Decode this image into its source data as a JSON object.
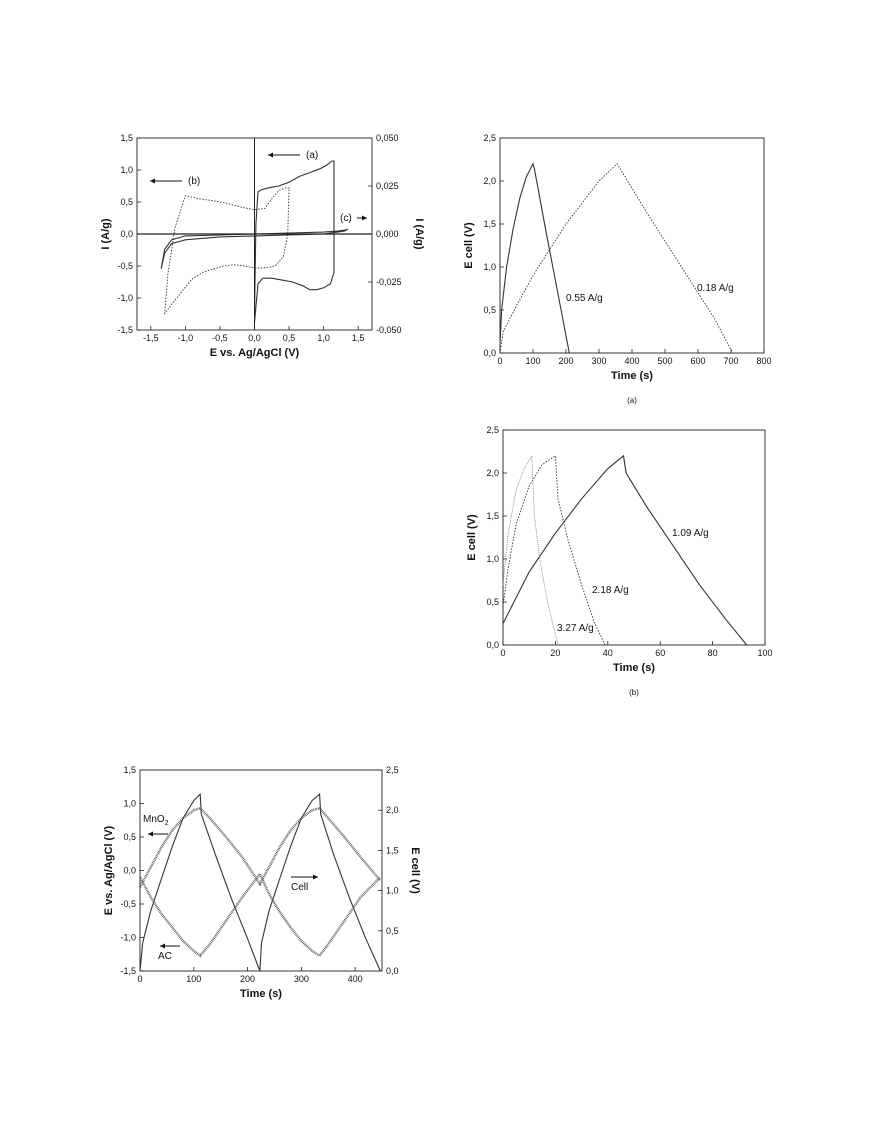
{
  "chart_data": [
    {
      "id": "cv",
      "type": "line",
      "xlabel": "E vs. Ag/AgCl (V)",
      "ylabel": "I (A/g)",
      "ylabel_right": "I (A/g)",
      "xlim": [
        -1.7,
        1.7
      ],
      "ylim": [
        -1.5,
        1.5
      ],
      "ylim_right": [
        -0.05,
        0.05
      ],
      "xticks": [
        -1.5,
        -1.0,
        -0.5,
        0.0,
        0.5,
        1.0,
        1.5
      ],
      "xtick_labels": [
        "-1,5",
        "-1,0",
        "-0,5",
        "0,0",
        "0,5",
        "1,0",
        "1,5"
      ],
      "yticks": [
        -1.5,
        -1.0,
        -0.5,
        0.0,
        0.5,
        1.0,
        1.5
      ],
      "ytick_labels": [
        "-1,5",
        "-1,0",
        "-0,5",
        "0,0",
        "0,5",
        "1,0",
        "1,5"
      ],
      "yticks_right": [
        -0.05,
        -0.025,
        0.0,
        0.025,
        0.05
      ],
      "ytick_labels_right": [
        "-0,050",
        "-0,025",
        "0,000",
        "0,025",
        "0,050"
      ],
      "annotations": [
        {
          "text": "(a)",
          "arrow": "left"
        },
        {
          "text": "(b)",
          "arrow": "left"
        },
        {
          "text": "(c)",
          "arrow": "right"
        }
      ],
      "series": [
        {
          "axis": "right",
          "style": "solid",
          "x": [
            0.0,
            0.02,
            0.05,
            0.1,
            0.2,
            0.35,
            0.5,
            0.65,
            0.8,
            0.95,
            1.05,
            1.12,
            1.15,
            1.15,
            1.1,
            1.0,
            0.9,
            0.8,
            0.7,
            0.55,
            0.4,
            0.25,
            0.12,
            0.05,
            0.0
          ],
          "y": [
            -0.042,
            0.005,
            0.022,
            0.023,
            0.024,
            0.025,
            0.027,
            0.03,
            0.032,
            0.034,
            0.036,
            0.038,
            0.038,
            -0.02,
            -0.026,
            -0.028,
            -0.029,
            -0.029,
            -0.027,
            -0.025,
            -0.024,
            -0.023,
            -0.023,
            -0.026,
            -0.046
          ]
        },
        {
          "axis": "left",
          "style": "dotted",
          "x": [
            -1.3,
            -1.25,
            -1.15,
            -1.0,
            -0.8,
            -0.6,
            -0.4,
            -0.2,
            0.0,
            0.15,
            0.25,
            0.35,
            0.45,
            0.5,
            0.48,
            0.42,
            0.3,
            0.15,
            0.0,
            -0.15,
            -0.3,
            -0.45,
            -0.6,
            -0.75,
            -0.9,
            -1.05,
            -1.2,
            -1.3
          ],
          "y": [
            -1.25,
            -0.6,
            0.1,
            0.6,
            0.55,
            0.52,
            0.48,
            0.42,
            0.38,
            0.4,
            0.55,
            0.68,
            0.72,
            0.72,
            0.0,
            -0.35,
            -0.5,
            -0.53,
            -0.53,
            -0.5,
            -0.48,
            -0.5,
            -0.55,
            -0.6,
            -0.7,
            -0.9,
            -1.1,
            -1.25
          ]
        },
        {
          "axis": "right",
          "style": "solid",
          "x": [
            -1.35,
            -1.3,
            -1.2,
            -1.0,
            -0.5,
            0.0,
            0.5,
            1.0,
            1.2,
            1.3,
            1.35,
            1.3,
            1.2,
            1.0,
            0.5,
            0.0,
            -0.5,
            -1.0,
            -1.2,
            -1.3,
            -1.35
          ],
          "y": [
            -0.018,
            -0.008,
            -0.003,
            -0.001,
            -0.0005,
            0.0,
            0.0005,
            0.001,
            0.0015,
            0.002,
            0.0025,
            0.0015,
            0.001,
            0.0,
            -0.0005,
            -0.001,
            -0.0015,
            -0.003,
            -0.005,
            -0.01,
            -0.018
          ]
        }
      ]
    },
    {
      "id": "gcd-a",
      "type": "line",
      "xlabel": "Time (s)",
      "ylabel": "E cell (V)",
      "caption": "(a)",
      "xlim": [
        0,
        800
      ],
      "ylim": [
        0,
        2.5
      ],
      "xticks": [
        0,
        100,
        200,
        300,
        400,
        500,
        600,
        700,
        800
      ],
      "xtick_labels": [
        "0",
        "100",
        "200",
        "300",
        "400",
        "500",
        "600",
        "700",
        "800"
      ],
      "yticks": [
        0,
        0.5,
        1.0,
        1.5,
        2.0,
        2.5
      ],
      "ytick_labels": [
        "0,0",
        "0,5",
        "1,0",
        "1,5",
        "2,0",
        "2,5"
      ],
      "series": [
        {
          "label": "0.55 A/g",
          "style": "solid",
          "x": [
            0,
            5,
            20,
            40,
            60,
            80,
            100,
            104,
            140,
            175,
            210
          ],
          "y": [
            0.1,
            0.5,
            1.0,
            1.45,
            1.8,
            2.05,
            2.2,
            2.15,
            1.4,
            0.7,
            0.0
          ]
        },
        {
          "label": "0.18 A/g",
          "style": "dotted",
          "x": [
            0,
            10,
            50,
            100,
            150,
            200,
            250,
            300,
            355,
            360,
            450,
            550,
            650,
            705
          ],
          "y": [
            0.0,
            0.25,
            0.55,
            0.9,
            1.2,
            1.5,
            1.75,
            2.0,
            2.2,
            2.17,
            1.6,
            1.0,
            0.4,
            0.0
          ]
        }
      ]
    },
    {
      "id": "gcd-b",
      "type": "line",
      "xlabel": "Time (s)",
      "ylabel": "E cell (V)",
      "caption": "(b)",
      "xlim": [
        0,
        100
      ],
      "ylim": [
        0,
        2.5
      ],
      "xticks": [
        0,
        20,
        40,
        60,
        80,
        100
      ],
      "xtick_labels": [
        "0",
        "20",
        "40",
        "60",
        "80",
        "100"
      ],
      "yticks": [
        0,
        0.5,
        1.0,
        1.5,
        2.0,
        2.5
      ],
      "ytick_labels": [
        "0,0",
        "0,5",
        "1,0",
        "1,5",
        "2,0",
        "2,5"
      ],
      "series": [
        {
          "label": "1.09 A/g",
          "style": "solid",
          "x": [
            0,
            5,
            10,
            20,
            30,
            40,
            46,
            47,
            55,
            65,
            75,
            85,
            93
          ],
          "y": [
            0.25,
            0.55,
            0.85,
            1.3,
            1.7,
            2.05,
            2.2,
            2.0,
            1.6,
            1.15,
            0.7,
            0.3,
            0.0
          ]
        },
        {
          "label": "2.18 A/g",
          "style": "dotted",
          "x": [
            0,
            2,
            5,
            10,
            15,
            20,
            21,
            25,
            30,
            35,
            39
          ],
          "y": [
            0.45,
            0.9,
            1.4,
            1.85,
            2.1,
            2.2,
            1.7,
            1.2,
            0.7,
            0.25,
            0.0
          ]
        },
        {
          "label": "3.27 A/g",
          "style": "light",
          "x": [
            0,
            2,
            5,
            8,
            11,
            12,
            14,
            17,
            21
          ],
          "y": [
            0.7,
            1.3,
            1.8,
            2.05,
            2.2,
            1.5,
            1.0,
            0.5,
            0.0
          ]
        }
      ]
    },
    {
      "id": "electrodes",
      "type": "line",
      "xlabel": "Time (s)",
      "ylabel": "E vs. Ag/AgCl (V)",
      "ylabel_right": "E cell (V)",
      "xlim": [
        0,
        450
      ],
      "ylim": [
        -1.5,
        1.5
      ],
      "ylim_right": [
        0,
        2.5
      ],
      "xticks": [
        0,
        100,
        200,
        300,
        400
      ],
      "xtick_labels": [
        "0",
        "100",
        "200",
        "300",
        "400"
      ],
      "yticks": [
        -1.5,
        -1.0,
        -0.5,
        0.0,
        0.5,
        1.0,
        1.5
      ],
      "ytick_labels": [
        "-1,5",
        "-1,0",
        "-0,5",
        "0,0",
        "0,5",
        "1,0",
        "1,5"
      ],
      "yticks_right": [
        0,
        0.5,
        1.0,
        1.5,
        2.0,
        2.5
      ],
      "ytick_labels_right": [
        "0,0",
        "0,5",
        "1,0",
        "1,5",
        "2,0",
        "2,5"
      ],
      "annotations": [
        {
          "text": "MnO",
          "sub": "2",
          "arrow": "left"
        },
        {
          "text": "Cell",
          "arrow": "right"
        },
        {
          "text": "AC",
          "arrow": "left"
        }
      ],
      "series": [
        {
          "label": "Cell",
          "axis": "right",
          "style": "solid",
          "x": [
            0,
            5,
            20,
            40,
            60,
            80,
            100,
            112,
            114,
            140,
            170,
            200,
            223,
            226,
            240,
            260,
            280,
            300,
            320,
            334,
            336,
            360,
            390,
            420,
            447
          ],
          "y": [
            0.0,
            0.35,
            0.75,
            1.15,
            1.55,
            1.9,
            2.12,
            2.2,
            1.95,
            1.45,
            0.9,
            0.4,
            0.0,
            0.35,
            0.75,
            1.15,
            1.55,
            1.9,
            2.12,
            2.2,
            1.95,
            1.45,
            0.9,
            0.4,
            0.0
          ]
        },
        {
          "label": "MnO2",
          "axis": "left",
          "style": "thick",
          "x": [
            0,
            20,
            40,
            60,
            80,
            100,
            112,
            130,
            160,
            190,
            223,
            240,
            260,
            280,
            300,
            320,
            334,
            350,
            380,
            410,
            447
          ],
          "y": [
            -0.25,
            0.05,
            0.35,
            0.6,
            0.78,
            0.9,
            0.93,
            0.78,
            0.5,
            0.2,
            -0.2,
            0.05,
            0.35,
            0.6,
            0.78,
            0.9,
            0.93,
            0.78,
            0.5,
            0.2,
            -0.15
          ]
        },
        {
          "label": "AC",
          "axis": "left",
          "style": "thick",
          "x": [
            0,
            20,
            40,
            60,
            80,
            100,
            112,
            130,
            160,
            190,
            223,
            240,
            260,
            280,
            300,
            320,
            334,
            350,
            380,
            410,
            447
          ],
          "y": [
            -0.1,
            -0.4,
            -0.65,
            -0.85,
            -1.05,
            -1.2,
            -1.27,
            -1.1,
            -0.75,
            -0.4,
            -0.05,
            -0.35,
            -0.62,
            -0.85,
            -1.05,
            -1.2,
            -1.27,
            -1.1,
            -0.75,
            -0.4,
            -0.1
          ]
        }
      ]
    }
  ]
}
